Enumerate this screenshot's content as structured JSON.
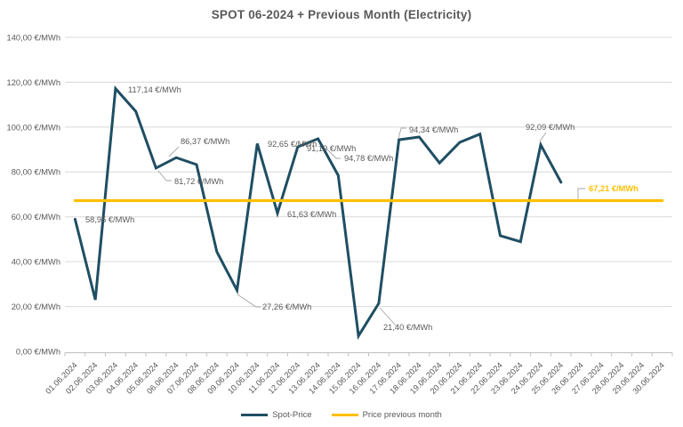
{
  "title": "SPOT 06-2024 + Previous Month (Electricity)",
  "colors": {
    "spot": "#1F4E63",
    "previous_month": "#FFC000",
    "grid": "#D9D9D9",
    "axis": "#BFBFBF",
    "text": "#595959",
    "leader": "#A6A6A6"
  },
  "chart_data": {
    "type": "line",
    "title": "SPOT 06-2024 + Previous Month (Electricity)",
    "grid": "horizontal",
    "legend_position": "bottom",
    "ylim": [
      0,
      140
    ],
    "y_tick_step": 20,
    "y_tick_labels": [
      "0,00 €/MWh",
      "20,00 €/MWh",
      "40,00 €/MWh",
      "60,00 €/MWh",
      "80,00 €/MWh",
      "100,00 €/MWh",
      "120,00 €/MWh",
      "140,00 €/MWh"
    ],
    "categories": [
      "01.06.2024",
      "02.06.2024",
      "03.06.2024",
      "04.06.2024",
      "05.06.2024",
      "06.06.2024",
      "07.06.2024",
      "08.06.2024",
      "09.06.2024",
      "10.06.2024",
      "11.06.2024",
      "12.06.2024",
      "13.06.2024",
      "14.06.2024",
      "15.06.2024",
      "16.06.2024",
      "17.06.2024",
      "18.06.2024",
      "19.06.2024",
      "20.06.2024",
      "21.06.2024",
      "22.06.2024",
      "23.06.2024",
      "24.06.2024",
      "25.06.2024",
      "26.06.2024",
      "27.06.2024",
      "28.06.2024",
      "29.06.2024",
      "30.06.2024"
    ],
    "series": [
      {
        "name": "Spot-Price",
        "color": "#1F4E63",
        "values": [
          58.95,
          23.0,
          117.14,
          107.0,
          81.72,
          86.37,
          83.3,
          44.4,
          27.26,
          92.65,
          61.63,
          91.19,
          94.78,
          78.5,
          6.9,
          21.4,
          94.34,
          95.6,
          84.0,
          93.2,
          96.9,
          51.6,
          48.9,
          92.09,
          75.4
        ]
      },
      {
        "name": "Price previous month",
        "color": "#FFC000",
        "constant_value": 67.21
      }
    ],
    "point_labels": [
      {
        "index": 0,
        "text": "58,95 €/MWh"
      },
      {
        "index": 2,
        "text": "117,14 €/MWh"
      },
      {
        "index": 4,
        "text": "81,72 €/MWh"
      },
      {
        "index": 5,
        "text": "86,37 €/MWh"
      },
      {
        "index": 8,
        "text": "27,26 €/MWh"
      },
      {
        "index": 9,
        "text": "92,65 €/MWh"
      },
      {
        "index": 10,
        "text": "61,63 €/MWh"
      },
      {
        "index": 11,
        "text": "91,19 €/MWh"
      },
      {
        "index": 12,
        "text": "94,78 €/MWh"
      },
      {
        "index": 15,
        "text": "21,40 €/MWh"
      },
      {
        "index": 16,
        "text": "94,34 €/MWh"
      },
      {
        "index": 23,
        "text": "92,09 €/MWh"
      }
    ],
    "reference_line_label": "67,21 €/MWh"
  },
  "legend": {
    "items": [
      {
        "label": "Spot-Price",
        "color": "#1F4E63"
      },
      {
        "label": "Price previous month",
        "color": "#FFC000"
      }
    ]
  }
}
